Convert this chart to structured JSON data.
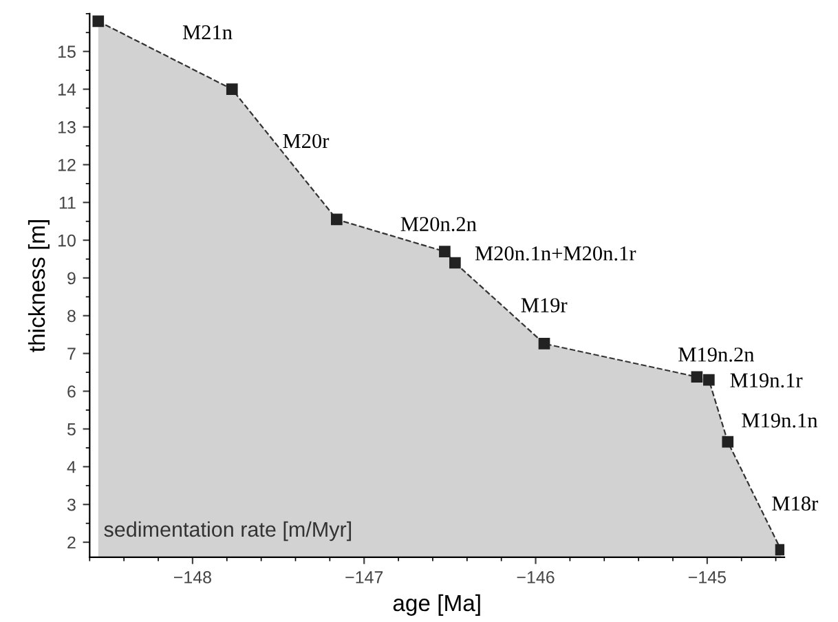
{
  "chart_data": {
    "type": "area",
    "xlabel": "age [Ma]",
    "ylabel": "thickness [m]",
    "x": [
      -148.55,
      -147.77,
      -147.16,
      -146.53,
      -146.47,
      -145.95,
      -145.06,
      -144.99,
      -144.88,
      -144.57
    ],
    "series": [
      {
        "color": "#d2d2d2",
        "values": [
          15.8,
          14.0,
          10.55,
          9.7,
          9.4,
          7.26,
          6.38,
          6.3,
          4.66,
          1.8
        ]
      }
    ],
    "xlim": [
      -148.6,
      -144.55
    ],
    "ylim": [
      1.6,
      16.0
    ],
    "xticks": [
      {
        "value": -148,
        "label": "−148"
      },
      {
        "value": -147,
        "label": "−147"
      },
      {
        "value": -146,
        "label": "−146"
      },
      {
        "value": -145,
        "label": "−145"
      }
    ],
    "yticks": [
      2,
      3,
      4,
      5,
      6,
      7,
      8,
      9,
      10,
      11,
      12,
      13,
      14,
      15
    ],
    "marker": "square",
    "line_style": "dashed",
    "grid": false,
    "legend": false,
    "annotations": [
      "M21n",
      "M20r",
      "M20n.2n",
      "M20n.1n+M20n.1r",
      "M19r",
      "M19n.2n",
      "M19n.1r",
      "M19n.1n",
      "M18r",
      "sedimentation rate [m/Myr]"
    ]
  }
}
